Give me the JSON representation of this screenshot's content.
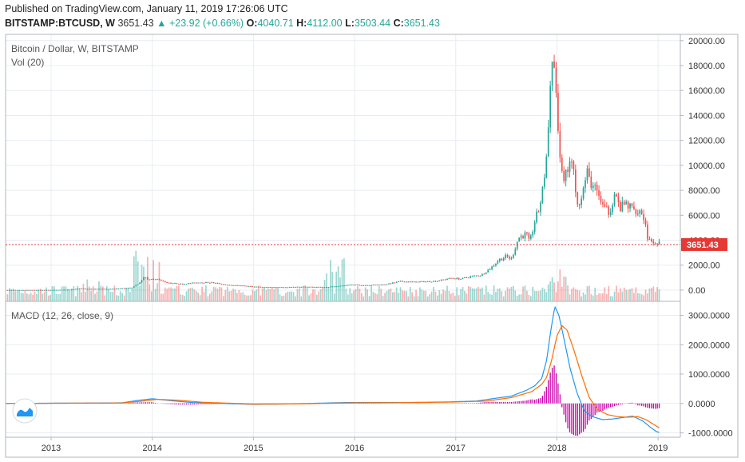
{
  "header": {
    "published": "Published on TradingView.com, January 11, 2019 17:26:06 UTC",
    "symbol": "BITSTAMP:BTCUSD, W",
    "last": "3651.43",
    "change": "+23.92 (+0.66%)",
    "o_label": "O:",
    "o": "4040.71",
    "h_label": "H:",
    "h": "4112.00",
    "l_label": "L:",
    "l": "3503.44",
    "c_label": "C:",
    "c": "3651.43"
  },
  "colors": {
    "up": "#26a69a",
    "down": "#ef5350",
    "macd": "#2196f3",
    "signal": "#ff6d00",
    "hist": "#cc00aa",
    "price_line": "#e53935",
    "grid": "#e8ecf0"
  },
  "chart_data": [
    {
      "type": "candlestick",
      "title": "Bitcoin / Dollar, W, BITSTAMP",
      "volume_label": "Vol (20)",
      "last_price_label": "3651.43",
      "last_price": 3651.43,
      "ylim": [
        -900,
        20500
      ],
      "y_ticks": [
        "20000.00",
        "18000.00",
        "16000.00",
        "14000.00",
        "12000.00",
        "10000.00",
        "8000.00",
        "6000.00",
        "4000.00",
        "2000.00",
        "0.00"
      ],
      "y_tick_values": [
        20000,
        18000,
        16000,
        14000,
        12000,
        10000,
        8000,
        6000,
        4000,
        2000,
        0
      ],
      "x_ticks": [
        "2013",
        "2014",
        "2015",
        "2016",
        "2017",
        "2018",
        "2019"
      ],
      "x_tick_values": [
        2013,
        2014,
        2015,
        2016,
        2017,
        2018,
        2019
      ],
      "xlim": [
        2012.55,
        2019.22
      ],
      "price_path": [
        [
          2012.55,
          10
        ],
        [
          2013.0,
          13
        ],
        [
          2013.2,
          45
        ],
        [
          2013.28,
          150
        ],
        [
          2013.35,
          100
        ],
        [
          2013.6,
          110
        ],
        [
          2013.8,
          200
        ],
        [
          2013.88,
          600
        ],
        [
          2013.92,
          1050
        ],
        [
          2013.96,
          850
        ],
        [
          2014.05,
          850
        ],
        [
          2014.15,
          600
        ],
        [
          2014.3,
          480
        ],
        [
          2014.45,
          620
        ],
        [
          2014.6,
          600
        ],
        [
          2014.75,
          400
        ],
        [
          2014.9,
          360
        ],
        [
          2015.0,
          280
        ],
        [
          2015.1,
          240
        ],
        [
          2015.3,
          230
        ],
        [
          2015.5,
          270
        ],
        [
          2015.7,
          240
        ],
        [
          2015.85,
          330
        ],
        [
          2015.95,
          430
        ],
        [
          2016.1,
          400
        ],
        [
          2016.3,
          450
        ],
        [
          2016.45,
          700
        ],
        [
          2016.6,
          650
        ],
        [
          2016.8,
          720
        ],
        [
          2016.95,
          960
        ],
        [
          2017.05,
          900
        ],
        [
          2017.15,
          1100
        ],
        [
          2017.25,
          1200
        ],
        [
          2017.35,
          1800
        ],
        [
          2017.42,
          2400
        ],
        [
          2017.5,
          2700
        ],
        [
          2017.55,
          2500
        ],
        [
          2017.62,
          4200
        ],
        [
          2017.7,
          4500
        ],
        [
          2017.73,
          3700
        ],
        [
          2017.78,
          5500
        ],
        [
          2017.82,
          6400
        ],
        [
          2017.86,
          8000
        ],
        [
          2017.9,
          11000
        ],
        [
          2017.93,
          15000
        ],
        [
          2017.96,
          19000
        ],
        [
          2017.98,
          16500
        ],
        [
          2018.0,
          14000
        ],
        [
          2018.03,
          11000
        ],
        [
          2018.06,
          8200
        ],
        [
          2018.1,
          9500
        ],
        [
          2018.14,
          10500
        ],
        [
          2018.18,
          8500
        ],
        [
          2018.21,
          7000
        ],
        [
          2018.25,
          7800
        ],
        [
          2018.3,
          9300
        ],
        [
          2018.35,
          8400
        ],
        [
          2018.42,
          7500
        ],
        [
          2018.47,
          6400
        ],
        [
          2018.52,
          6300
        ],
        [
          2018.57,
          7800
        ],
        [
          2018.62,
          6500
        ],
        [
          2018.68,
          6900
        ],
        [
          2018.75,
          6500
        ],
        [
          2018.83,
          6400
        ],
        [
          2018.87,
          5500
        ],
        [
          2018.9,
          4100
        ],
        [
          2018.93,
          3800
        ],
        [
          2018.96,
          3500
        ],
        [
          2018.98,
          4000
        ],
        [
          2019.02,
          3651
        ]
      ],
      "volume_max_label": "peaks near 2014 and late 2015"
    },
    {
      "type": "line",
      "title": "MACD (12, 26, close, 9)",
      "ylim": [
        -1150,
        3450
      ],
      "y_ticks": [
        "3000.0000",
        "2000.0000",
        "1000.0000",
        "0.0000",
        "-1000.0000"
      ],
      "y_tick_values": [
        3000,
        2000,
        1000,
        0,
        -1000
      ],
      "series": [
        {
          "name": "MACD",
          "points": [
            [
              2012.55,
              0
            ],
            [
              2013.7,
              20
            ],
            [
              2013.85,
              100
            ],
            [
              2014.0,
              160
            ],
            [
              2014.2,
              90
            ],
            [
              2014.4,
              30
            ],
            [
              2014.6,
              10
            ],
            [
              2015.0,
              -30
            ],
            [
              2015.3,
              -20
            ],
            [
              2015.9,
              30
            ],
            [
              2016.5,
              30
            ],
            [
              2016.9,
              50
            ],
            [
              2017.2,
              80
            ],
            [
              2017.4,
              180
            ],
            [
              2017.55,
              250
            ],
            [
              2017.7,
              450
            ],
            [
              2017.78,
              600
            ],
            [
              2017.85,
              850
            ],
            [
              2017.9,
              1500
            ],
            [
              2017.94,
              2500
            ],
            [
              2017.98,
              3300
            ],
            [
              2018.02,
              3000
            ],
            [
              2018.07,
              2200
            ],
            [
              2018.13,
              1200
            ],
            [
              2018.2,
              350
            ],
            [
              2018.27,
              -250
            ],
            [
              2018.35,
              -450
            ],
            [
              2018.45,
              -550
            ],
            [
              2018.55,
              -530
            ],
            [
              2018.65,
              -480
            ],
            [
              2018.75,
              -430
            ],
            [
              2018.85,
              -600
            ],
            [
              2018.92,
              -800
            ],
            [
              2018.98,
              -950
            ],
            [
              2019.02,
              -1000
            ]
          ]
        },
        {
          "name": "Signal",
          "points": [
            [
              2012.55,
              0
            ],
            [
              2013.7,
              15
            ],
            [
              2013.9,
              80
            ],
            [
              2014.05,
              140
            ],
            [
              2014.25,
              110
            ],
            [
              2014.5,
              40
            ],
            [
              2015.0,
              -20
            ],
            [
              2015.4,
              -15
            ],
            [
              2016.0,
              20
            ],
            [
              2016.6,
              30
            ],
            [
              2017.0,
              50
            ],
            [
              2017.3,
              80
            ],
            [
              2017.55,
              200
            ],
            [
              2017.75,
              400
            ],
            [
              2017.85,
              650
            ],
            [
              2017.9,
              900
            ],
            [
              2017.95,
              1500
            ],
            [
              2018.0,
              2300
            ],
            [
              2018.05,
              2650
            ],
            [
              2018.1,
              2500
            ],
            [
              2018.17,
              1800
            ],
            [
              2018.25,
              900
            ],
            [
              2018.32,
              200
            ],
            [
              2018.4,
              -200
            ],
            [
              2018.5,
              -380
            ],
            [
              2018.6,
              -450
            ],
            [
              2018.7,
              -470
            ],
            [
              2018.8,
              -450
            ],
            [
              2018.88,
              -550
            ],
            [
              2018.95,
              -700
            ],
            [
              2019.02,
              -850
            ]
          ]
        }
      ],
      "histogram_note": "MACD minus Signal"
    }
  ]
}
